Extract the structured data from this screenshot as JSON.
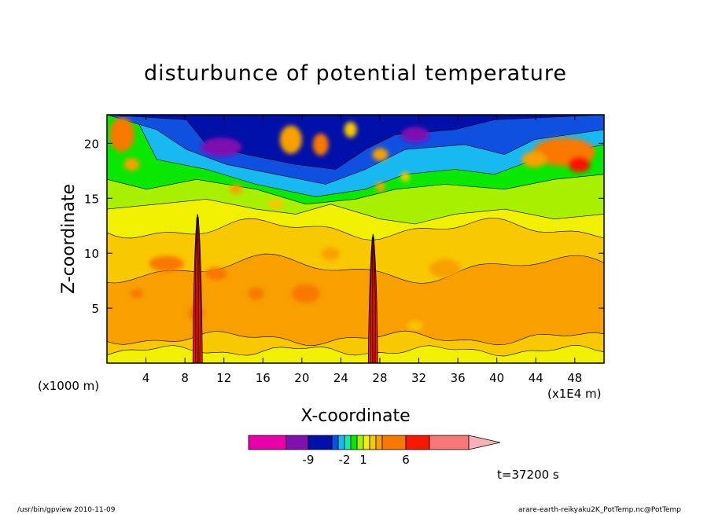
{
  "footer": {
    "left": "/usr/bin/gpview   2010-11-09",
    "right": "arare-earth-reikyaku2K_PotTemp.nc@PotTemp"
  },
  "time_label": "t=37200 s",
  "chart_data": {
    "type": "heatmap",
    "title": "disturbunce of potential temperature",
    "xlabel": "X-coordinate",
    "ylabel": "Z-coordinate",
    "x_unit_left": "(x1000 m)",
    "x_unit_right": "(x1E4 m)",
    "x_ticks": [
      4,
      8,
      12,
      16,
      20,
      24,
      28,
      32,
      36,
      40,
      44,
      48
    ],
    "y_ticks": [
      5,
      10,
      15,
      20
    ],
    "xlim": [
      0,
      51
    ],
    "ylim": [
      0,
      22.6
    ],
    "grid": false,
    "colorbar": {
      "colors": [
        "#e800a8",
        "#8010b0",
        "#0010a8",
        "#1050e0",
        "#18b8f0",
        "#18e8b0",
        "#08e800",
        "#a8f000",
        "#f0f000",
        "#f8c800",
        "#f8a000",
        "#f87800",
        "#f81800",
        "#f87878",
        "#f8b0b8"
      ],
      "tick_labels": [
        {
          "label": "-9",
          "boundary": 2
        },
        {
          "label": "-2",
          "boundary": 5
        },
        {
          "label": "1",
          "boundary": 8
        },
        {
          "label": "6",
          "boundary": 12
        }
      ]
    }
  }
}
